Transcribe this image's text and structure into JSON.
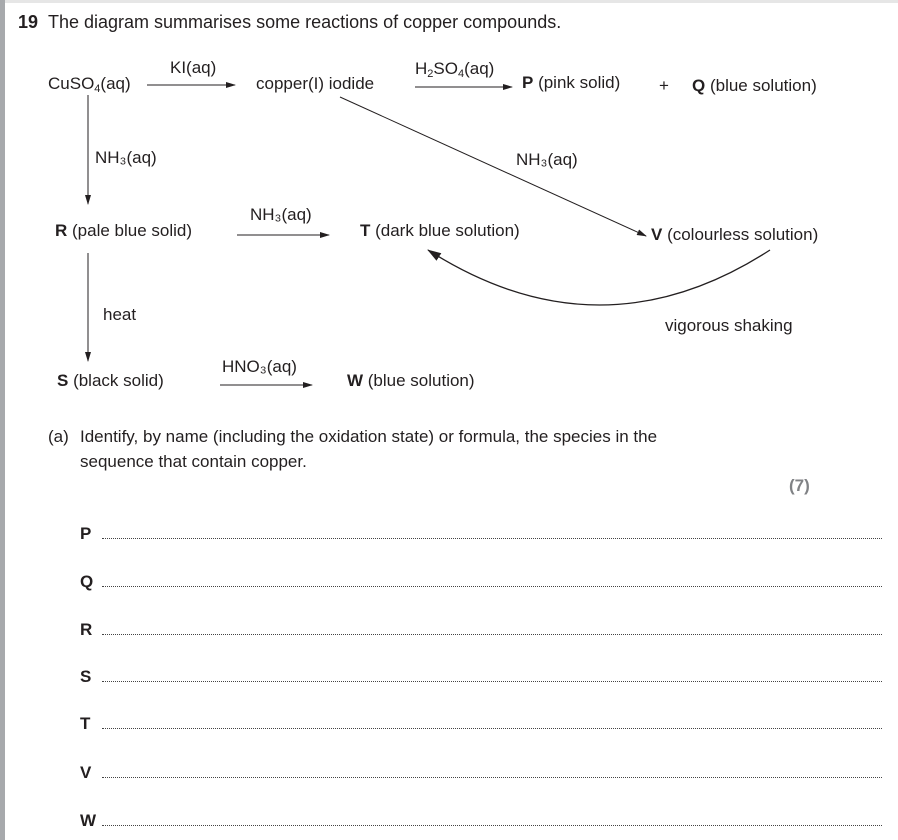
{
  "question": {
    "number": "19",
    "stem": "The diagram summarises some reactions of copper compounds."
  },
  "diagram": {
    "cuso4": {
      "main": "CuSO",
      "sub": "4",
      "tail": "(aq)"
    },
    "ki": "KI(aq)",
    "copper_iodide": "copper(I) iodide",
    "h2so4": {
      "a": "H",
      "sub1": "2",
      "b": "SO",
      "sub2": "4",
      "tail": "(aq)"
    },
    "p": {
      "letter": "P",
      "desc": " (pink solid)"
    },
    "plus": "+",
    "q": {
      "letter": "Q",
      "desc": " (blue solution)"
    },
    "nh3_down": "NH₃(aq)",
    "nh3_diag": "NH₃(aq)",
    "r": {
      "letter": "R",
      "desc": " (pale blue solid)"
    },
    "nh3_rt": "NH₃(aq)",
    "t": {
      "letter": "T",
      "desc": " (dark blue solution)"
    },
    "v": {
      "letter": "V",
      "desc": " (colourless solution)"
    },
    "heat": "heat",
    "shaking": "vigorous shaking",
    "s": {
      "letter": "S",
      "desc": " (black solid)"
    },
    "hno3": "HNO₃(aq)",
    "w": {
      "letter": "W",
      "desc": " (blue solution)"
    }
  },
  "part_a": {
    "label": "(a)",
    "line1": "Identify, by name (including the oxidation state) or formula, the species in the",
    "line2": "sequence that contain copper.",
    "marks": "(7)"
  },
  "answers": [
    "P",
    "Q",
    "R",
    "S",
    "T",
    "V",
    "W"
  ]
}
